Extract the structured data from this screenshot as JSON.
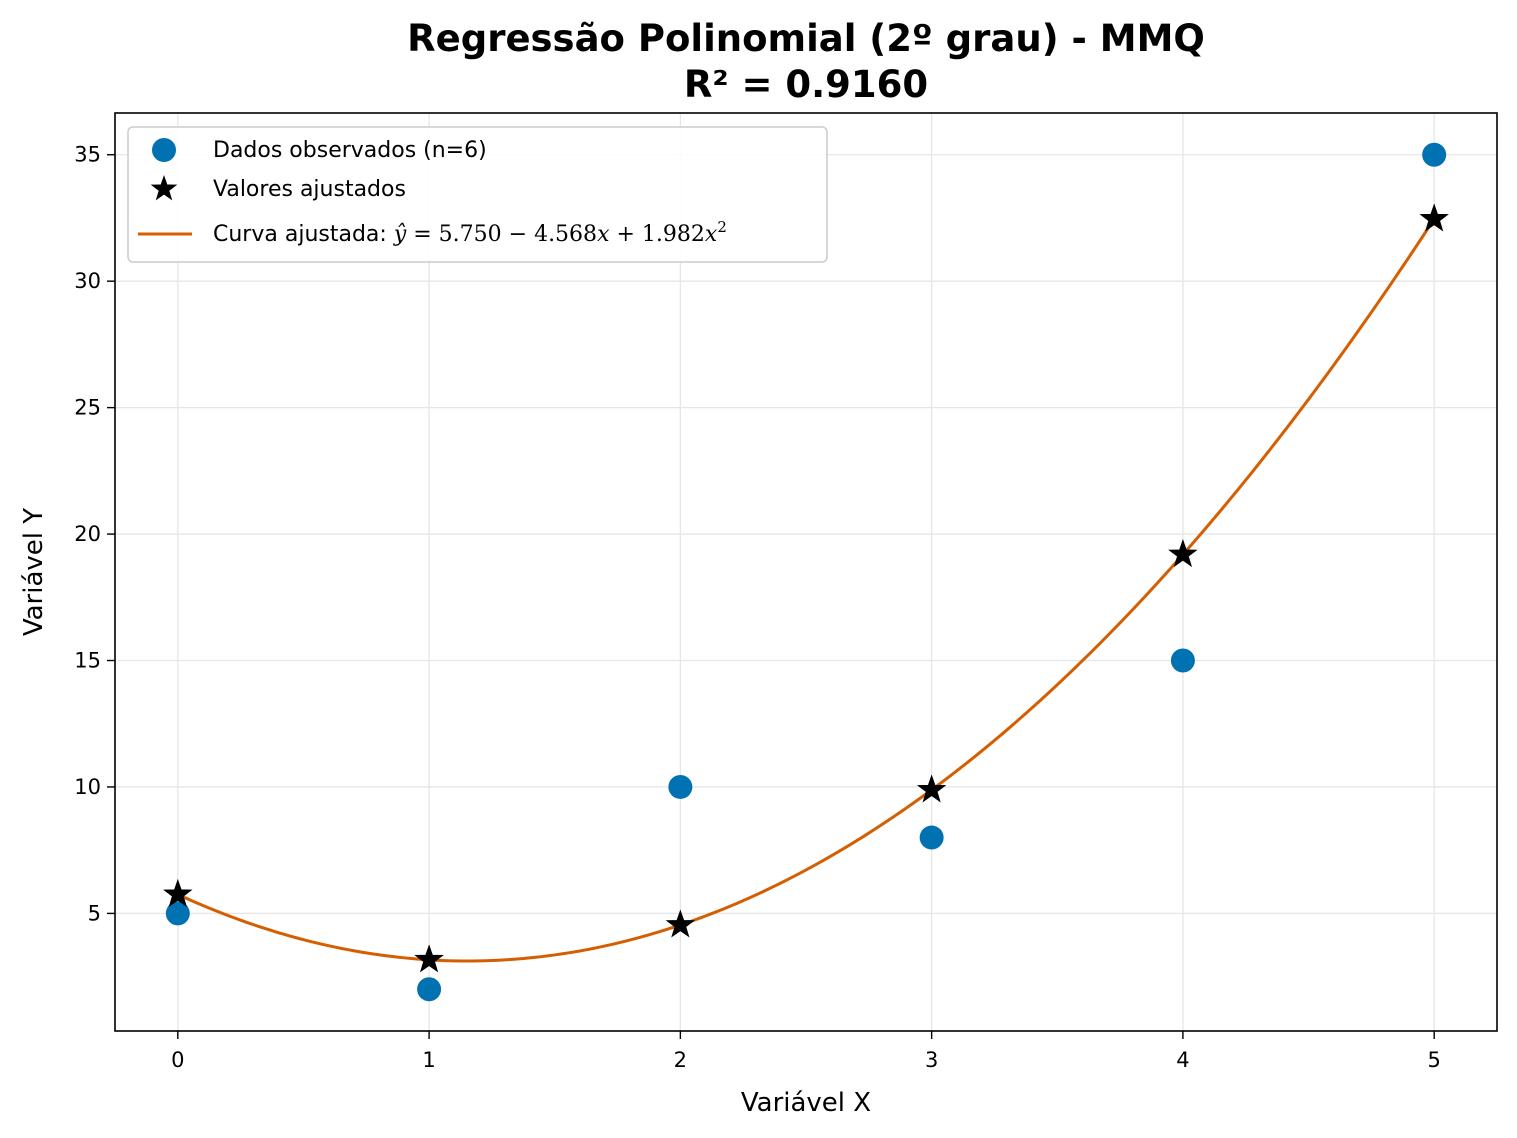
{
  "chart_data": {
    "type": "scatter",
    "title": "Regressão Polinomial (2º grau) - MMQ",
    "subtitle": "R² = 0.9160",
    "xlabel": "Variável X",
    "ylabel": "Variável Y",
    "xlim": [
      -0.25,
      5.25
    ],
    "ylim": [
      0.35,
      36.65
    ],
    "xticks": [
      0,
      1,
      2,
      3,
      4,
      5
    ],
    "yticks": [
      5,
      10,
      15,
      20,
      25,
      30,
      35
    ],
    "grid": true,
    "legend_position": "top-left",
    "coefficients": {
      "a": 5.75,
      "b": -4.568,
      "c": 1.982
    },
    "series": [
      {
        "name": "Dados observados (n=6)",
        "kind": "scatter",
        "marker": "circle",
        "color": "#0072B2",
        "x": [
          0,
          1,
          2,
          3,
          4,
          5
        ],
        "y": [
          5,
          2,
          10,
          8,
          15,
          35
        ]
      },
      {
        "name": "Valores ajustados",
        "kind": "scatter",
        "marker": "star",
        "color": "#000000",
        "x": [
          0,
          1,
          2,
          3,
          4,
          5
        ],
        "y": [
          5.75,
          3.164,
          4.542,
          9.884,
          19.19,
          32.46
        ]
      },
      {
        "name": "Curva ajustada:",
        "equation": {
          "lhs": "ŷ",
          "eq": " = 5.750 − 4.568",
          "var1": "x",
          "plus": " + 1.982",
          "var2": "x",
          "exp": "2"
        },
        "kind": "line",
        "color": "#D55E00"
      }
    ]
  }
}
